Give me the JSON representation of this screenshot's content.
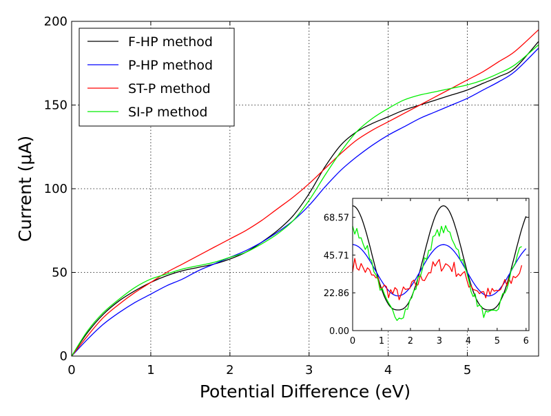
{
  "chart_data": [
    {
      "type": "line",
      "title": "",
      "xlabel": "Potential Difference (eV)",
      "ylabel": "Current (μA)",
      "xlim": [
        0,
        5.9
      ],
      "ylim": [
        0,
        200
      ],
      "xticks": [
        "0",
        "1",
        "2",
        "3",
        "4",
        "5"
      ],
      "yticks": [
        "0",
        "50",
        "100",
        "150",
        "200"
      ],
      "grid": true,
      "legend_position": "top-left",
      "x": [
        0,
        0.2,
        0.4,
        0.6,
        0.8,
        1.0,
        1.2,
        1.4,
        1.6,
        1.8,
        2.0,
        2.2,
        2.4,
        2.6,
        2.8,
        3.0,
        3.2,
        3.4,
        3.6,
        3.8,
        4.0,
        4.2,
        4.4,
        4.6,
        4.8,
        5.0,
        5.2,
        5.4,
        5.6,
        5.9
      ],
      "series": [
        {
          "name": "F-HP method",
          "color": "#000000",
          "values": [
            0,
            14,
            25,
            33,
            39,
            44,
            48,
            51,
            53,
            55,
            58,
            62,
            68,
            75,
            84,
            97,
            113,
            126,
            134,
            139,
            143,
            147,
            150,
            153,
            156,
            159,
            163,
            167,
            172,
            188
          ]
        },
        {
          "name": "P-HP method",
          "color": "#0000ff",
          "values": [
            0,
            10,
            19,
            26,
            32,
            37,
            42,
            46,
            51,
            55,
            59,
            63,
            68,
            74,
            81,
            90,
            101,
            111,
            119,
            126,
            132,
            137,
            142,
            146,
            150,
            154,
            159,
            164,
            170,
            184
          ]
        },
        {
          "name": "ST-P method",
          "color": "#ff0000",
          "values": [
            0,
            12,
            23,
            31,
            38,
            44,
            50,
            55,
            60,
            65,
            70,
            75,
            81,
            88,
            95,
            103,
            112,
            121,
            129,
            135,
            140,
            145,
            150,
            155,
            160,
            165,
            170,
            176,
            182,
            195
          ]
        },
        {
          "name": "SI-P method",
          "color": "#00ee00",
          "values": [
            0,
            15,
            26,
            34,
            41,
            46,
            49,
            52,
            54,
            56,
            59,
            62,
            67,
            73,
            81,
            93,
            108,
            122,
            134,
            142,
            148,
            153,
            156,
            158,
            160,
            162,
            165,
            169,
            174,
            186
          ]
        }
      ]
    },
    {
      "type": "line",
      "title": "",
      "xlabel": "",
      "ylabel": "",
      "xlim": [
        0,
        6.1
      ],
      "ylim": [
        0,
        80
      ],
      "xticks": [
        "0",
        "1",
        "2",
        "3",
        "4",
        "5",
        "6"
      ],
      "yticks": [
        "0.00",
        "22.86",
        "45.71",
        "68.57"
      ],
      "grid": false,
      "legend_position": "none",
      "series": [
        {
          "name": "F-HP method",
          "color": "#000000",
          "kind": "smooth",
          "base": 12.5,
          "amplitude": 63,
          "power": 2.6,
          "x_range": [
            0,
            6.0
          ]
        },
        {
          "name": "P-HP method",
          "color": "#0000ff",
          "kind": "smooth",
          "base": 21,
          "amplitude": 31,
          "power": 2.0,
          "x_range": [
            0,
            6.0
          ]
        },
        {
          "name": "ST-P method",
          "color": "#ff0000",
          "kind": "noisy",
          "base": 22,
          "amplitude": 18,
          "power": 2.0,
          "noise": 4.5,
          "x_range": [
            0,
            5.85
          ]
        },
        {
          "name": "SI-P method",
          "color": "#00ee00",
          "kind": "noisy",
          "base": 9,
          "amplitude": 52,
          "power": 2.0,
          "noise": 3.0,
          "x_range": [
            0,
            5.85
          ]
        }
      ]
    }
  ]
}
